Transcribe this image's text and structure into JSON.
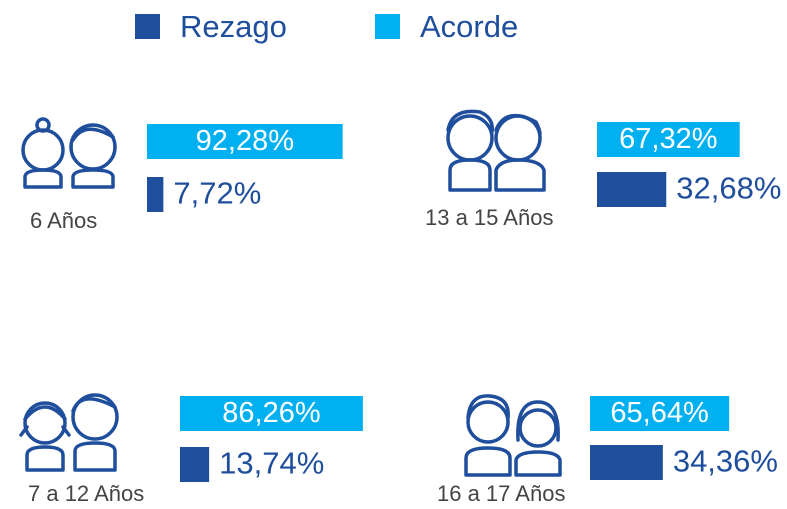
{
  "chart_data": {
    "type": "bar",
    "orientation": "horizontal",
    "categories": [
      "6 Años",
      "7 a 12 Años",
      "13 a 15 Años",
      "16 a 17 Años"
    ],
    "series": [
      {
        "name": "Rezago",
        "color": "#1f4e9c",
        "values": [
          7.72,
          13.74,
          32.68,
          34.36
        ],
        "value_labels": [
          "7,72%",
          "13,74%",
          "32,68%",
          "34,36%"
        ]
      },
      {
        "name": "Acorde",
        "color": "#00b0f0",
        "values": [
          92.28,
          86.26,
          67.32,
          65.64
        ],
        "value_labels": [
          "92,28%",
          "86,26%",
          "67,32%",
          "65,64%"
        ]
      }
    ],
    "legend": "top"
  }
}
